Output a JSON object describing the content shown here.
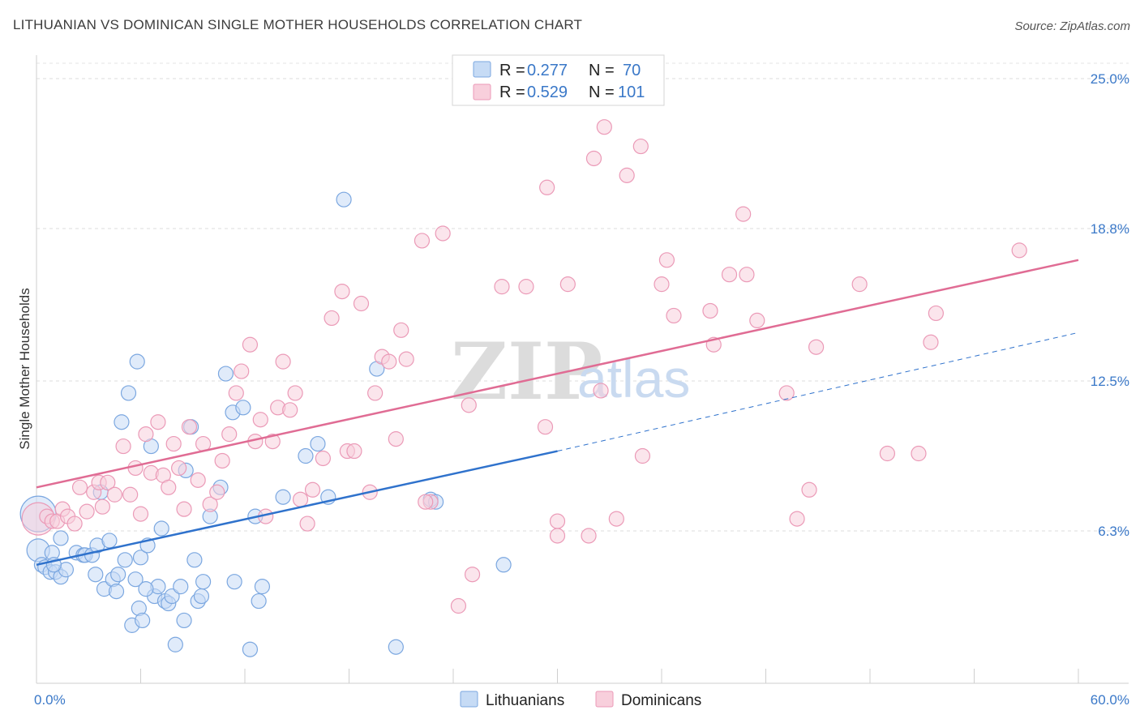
{
  "header": {
    "title": "LITHUANIAN VS DOMINICAN SINGLE MOTHER HOUSEHOLDS CORRELATION CHART",
    "source": "Source: ZipAtlas.com"
  },
  "watermark": {
    "zip": "ZIP",
    "atlas": "atlas"
  },
  "legend": {
    "rows": [
      {
        "r_label": "R =",
        "r_value": "0.277",
        "n_label": "N =",
        "n_value": "70"
      },
      {
        "r_label": "R =",
        "r_value": "0.529",
        "n_label": "N =",
        "n_value": "101"
      }
    ]
  },
  "bottom_legend": [
    "Lithuanians",
    "Dominicans"
  ],
  "chart_data": {
    "type": "scatter",
    "ylabel": "Single Mother Households",
    "xlim": [
      0,
      60
    ],
    "ylim": [
      0,
      25.0
    ],
    "x_tick_labels": [
      {
        "value": 0,
        "label": "0.0%"
      },
      {
        "value": 60,
        "label": "60.0%"
      }
    ],
    "y_tick_labels": [
      {
        "value": 6.3,
        "label": "6.3%"
      },
      {
        "value": 12.5,
        "label": "12.5%"
      },
      {
        "value": 18.8,
        "label": "18.8%"
      },
      {
        "value": 25.0,
        "label": "25.0%"
      }
    ],
    "grid": true,
    "series": [
      {
        "name": "Lithuanians",
        "color": "#7ba7e0",
        "fill": "#c6dbf5",
        "trend_color": "#2f72cc",
        "trend": {
          "x0": 0,
          "y0": 4.9,
          "x1": 30,
          "y1": 9.6,
          "dash_to_x": 60,
          "dash_to_y": 14.5
        },
        "points": [
          [
            0.1,
            7.0,
            22
          ],
          [
            0.1,
            5.5,
            14
          ],
          [
            0.3,
            4.9,
            9
          ],
          [
            0.5,
            4.8,
            9
          ],
          [
            0.8,
            4.6,
            9
          ],
          [
            0.9,
            5.4,
            9
          ],
          [
            1.1,
            4.6,
            9
          ],
          [
            1.4,
            4.4,
            9
          ],
          [
            1.4,
            6.0,
            9
          ],
          [
            1.7,
            4.7,
            9
          ],
          [
            2.3,
            5.4,
            9
          ],
          [
            2.7,
            5.3,
            9
          ],
          [
            2.8,
            5.3,
            9
          ],
          [
            3.2,
            5.3,
            9
          ],
          [
            3.4,
            4.5,
            9
          ],
          [
            3.5,
            5.7,
            9
          ],
          [
            3.9,
            3.9,
            9
          ],
          [
            3.7,
            7.9,
            9
          ],
          [
            4.2,
            5.9,
            9
          ],
          [
            4.4,
            4.3,
            9
          ],
          [
            4.6,
            3.8,
            9
          ],
          [
            4.7,
            4.5,
            9
          ],
          [
            4.9,
            10.8,
            9
          ],
          [
            5.1,
            5.1,
            9
          ],
          [
            5.3,
            12.0,
            9
          ],
          [
            5.5,
            2.4,
            9
          ],
          [
            5.7,
            4.3,
            9
          ],
          [
            5.8,
            13.3,
            9
          ],
          [
            5.9,
            3.1,
            9
          ],
          [
            6.0,
            5.2,
            9
          ],
          [
            6.1,
            2.6,
            9
          ],
          [
            6.4,
            5.7,
            9
          ],
          [
            6.6,
            9.8,
            9
          ],
          [
            6.8,
            3.6,
            9
          ],
          [
            7.0,
            4.0,
            9
          ],
          [
            7.2,
            6.4,
            9
          ],
          [
            7.4,
            3.4,
            9
          ],
          [
            7.6,
            3.3,
            9
          ],
          [
            7.8,
            3.6,
            9
          ],
          [
            8.0,
            1.6,
            9
          ],
          [
            8.3,
            4.0,
            9
          ],
          [
            8.5,
            2.6,
            9
          ],
          [
            8.6,
            8.8,
            9
          ],
          [
            8.9,
            10.6,
            9
          ],
          [
            9.1,
            5.1,
            9
          ],
          [
            9.3,
            3.4,
            9
          ],
          [
            9.5,
            3.6,
            9
          ],
          [
            9.6,
            4.2,
            9
          ],
          [
            10.0,
            6.9,
            9
          ],
          [
            10.6,
            8.1,
            9
          ],
          [
            10.9,
            12.8,
            9
          ],
          [
            11.3,
            11.2,
            9
          ],
          [
            11.4,
            4.2,
            9
          ],
          [
            11.9,
            11.4,
            9
          ],
          [
            12.3,
            1.4,
            9
          ],
          [
            12.6,
            6.9,
            9
          ],
          [
            12.8,
            3.4,
            9
          ],
          [
            13.0,
            4.0,
            9
          ],
          [
            14.2,
            7.7,
            9
          ],
          [
            15.5,
            9.4,
            9
          ],
          [
            16.2,
            9.9,
            9
          ],
          [
            16.8,
            7.7,
            9
          ],
          [
            17.7,
            20.0,
            9
          ],
          [
            19.6,
            13.0,
            9
          ],
          [
            20.7,
            1.5,
            9
          ],
          [
            22.7,
            7.6,
            9
          ],
          [
            26.9,
            4.9,
            9
          ],
          [
            23.0,
            7.5,
            9
          ],
          [
            6.3,
            3.9,
            9
          ],
          [
            1.0,
            4.9,
            9
          ]
        ]
      },
      {
        "name": "Dominicans",
        "color": "#eb9ab7",
        "fill": "#f8cfdc",
        "trend_color": "#e06c94",
        "trend": {
          "x0": 0,
          "y0": 8.1,
          "x1": 60,
          "y1": 17.5
        },
        "points": [
          [
            0.1,
            6.8,
            20
          ],
          [
            0.6,
            6.9,
            9
          ],
          [
            0.9,
            6.7,
            9
          ],
          [
            1.2,
            6.7,
            9
          ],
          [
            1.5,
            7.2,
            9
          ],
          [
            1.8,
            6.9,
            9
          ],
          [
            2.2,
            6.6,
            9
          ],
          [
            2.5,
            8.1,
            9
          ],
          [
            2.9,
            7.1,
            9
          ],
          [
            3.3,
            7.9,
            9
          ],
          [
            3.6,
            8.3,
            9
          ],
          [
            3.8,
            7.3,
            9
          ],
          [
            4.1,
            8.3,
            9
          ],
          [
            4.5,
            7.8,
            9
          ],
          [
            5.0,
            9.8,
            9
          ],
          [
            5.4,
            7.8,
            9
          ],
          [
            5.7,
            8.9,
            9
          ],
          [
            6.0,
            7.0,
            9
          ],
          [
            6.3,
            10.3,
            9
          ],
          [
            6.6,
            8.7,
            9
          ],
          [
            7.0,
            10.8,
            9
          ],
          [
            7.3,
            8.6,
            9
          ],
          [
            7.6,
            8.1,
            9
          ],
          [
            7.9,
            9.9,
            9
          ],
          [
            8.2,
            8.9,
            9
          ],
          [
            8.5,
            7.2,
            9
          ],
          [
            8.8,
            10.6,
            9
          ],
          [
            9.3,
            8.4,
            9
          ],
          [
            9.6,
            9.9,
            9
          ],
          [
            10.0,
            7.4,
            9
          ],
          [
            10.4,
            7.9,
            9
          ],
          [
            10.7,
            9.2,
            9
          ],
          [
            11.1,
            10.3,
            9
          ],
          [
            11.5,
            12.0,
            9
          ],
          [
            11.8,
            12.9,
            9
          ],
          [
            12.3,
            14.0,
            9
          ],
          [
            12.6,
            10.0,
            9
          ],
          [
            12.9,
            10.9,
            9
          ],
          [
            13.2,
            6.9,
            9
          ],
          [
            13.6,
            10.0,
            9
          ],
          [
            13.9,
            11.4,
            9
          ],
          [
            14.2,
            13.3,
            9
          ],
          [
            14.6,
            11.3,
            9
          ],
          [
            14.9,
            12.0,
            9
          ],
          [
            15.2,
            7.6,
            9
          ],
          [
            15.6,
            6.6,
            9
          ],
          [
            15.9,
            8.0,
            9
          ],
          [
            16.5,
            9.3,
            9
          ],
          [
            17.0,
            15.1,
            9
          ],
          [
            17.6,
            16.2,
            9
          ],
          [
            17.9,
            9.6,
            9
          ],
          [
            18.3,
            9.6,
            9
          ],
          [
            18.7,
            15.7,
            9
          ],
          [
            19.2,
            7.9,
            9
          ],
          [
            19.5,
            12.0,
            9
          ],
          [
            19.9,
            13.5,
            9
          ],
          [
            20.3,
            13.3,
            9
          ],
          [
            20.7,
            10.1,
            9
          ],
          [
            21.0,
            14.6,
            9
          ],
          [
            21.3,
            13.4,
            9
          ],
          [
            22.2,
            18.3,
            9
          ],
          [
            22.7,
            7.5,
            9
          ],
          [
            23.4,
            18.6,
            9
          ],
          [
            24.3,
            3.2,
            9
          ],
          [
            25.1,
            4.5,
            9
          ],
          [
            24.9,
            11.5,
            9
          ],
          [
            26.8,
            16.4,
            9
          ],
          [
            28.2,
            16.4,
            9
          ],
          [
            29.3,
            10.6,
            9
          ],
          [
            30.0,
            6.7,
            9
          ],
          [
            29.4,
            20.5,
            9
          ],
          [
            30.6,
            16.5,
            9
          ],
          [
            31.8,
            6.1,
            9
          ],
          [
            32.1,
            21.7,
            9
          ],
          [
            32.5,
            12.1,
            9
          ],
          [
            32.7,
            23.0,
            9
          ],
          [
            33.4,
            6.8,
            9
          ],
          [
            34.0,
            21.0,
            9
          ],
          [
            34.9,
            9.4,
            9
          ],
          [
            34.8,
            22.2,
            9
          ],
          [
            36.0,
            16.5,
            9
          ],
          [
            36.3,
            17.5,
            9
          ],
          [
            36.7,
            15.2,
            9
          ],
          [
            38.8,
            15.4,
            9
          ],
          [
            39.0,
            14.0,
            9
          ],
          [
            39.9,
            16.9,
            9
          ],
          [
            40.7,
            19.4,
            9
          ],
          [
            40.9,
            16.9,
            9
          ],
          [
            41.5,
            15.0,
            9
          ],
          [
            43.2,
            12.0,
            9
          ],
          [
            43.8,
            6.8,
            9
          ],
          [
            44.5,
            8.0,
            9
          ],
          [
            44.9,
            13.9,
            9
          ],
          [
            47.4,
            16.5,
            9
          ],
          [
            49.0,
            9.5,
            9
          ],
          [
            50.8,
            9.5,
            9
          ],
          [
            51.5,
            14.1,
            9
          ],
          [
            51.8,
            15.3,
            9
          ],
          [
            56.6,
            17.9,
            9
          ],
          [
            30.0,
            6.1,
            9
          ],
          [
            22.4,
            7.5,
            9
          ]
        ]
      }
    ]
  }
}
